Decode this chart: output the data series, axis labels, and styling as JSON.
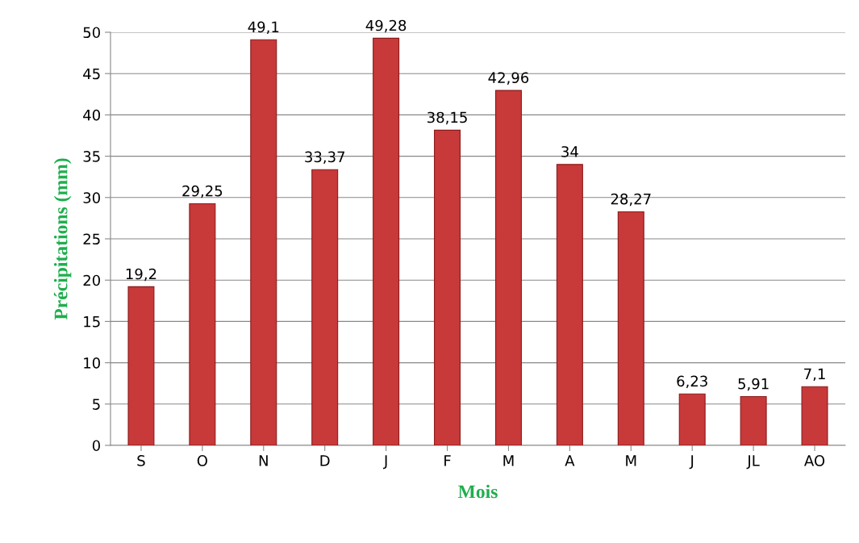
{
  "chart_data": {
    "type": "bar",
    "categories": [
      "S",
      "O",
      "N",
      "D",
      "J",
      "F",
      "M",
      "A",
      "M",
      "J",
      "JL",
      "AO"
    ],
    "values": [
      19.2,
      29.25,
      49.1,
      33.37,
      49.28,
      38.15,
      42.96,
      34,
      28.27,
      6.23,
      5.91,
      7.1
    ],
    "value_labels": [
      "19,2",
      "29,25",
      "49,1",
      "33,37",
      "49,28",
      "38,15",
      "42,96",
      "34",
      "28,27",
      "6,23",
      "5,91",
      "7,1"
    ],
    "color": "#c8393a",
    "xlabel": "Mois",
    "ylabel": "Précipitations (mm)",
    "ylim": [
      0,
      50
    ],
    "yticks": [
      0,
      5,
      10,
      15,
      20,
      25,
      30,
      35,
      40,
      45,
      50
    ],
    "grid": "y",
    "legend": false
  }
}
